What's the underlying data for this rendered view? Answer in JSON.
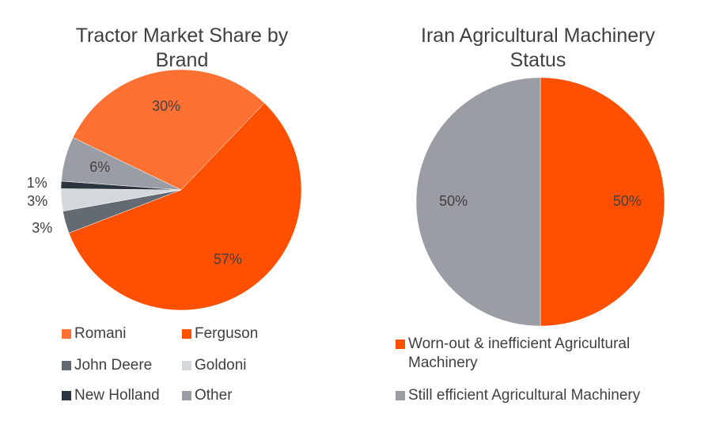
{
  "chart_data": [
    {
      "type": "pie",
      "title": "Tractor Market Share by Brand",
      "categories": [
        "Romani",
        "Ferguson",
        "John Deere",
        "Goldoni",
        "New Holland",
        "Other"
      ],
      "values": [
        30,
        57,
        3,
        3,
        1,
        6
      ],
      "value_labels": [
        "30%",
        "57%",
        "3%",
        "3%",
        "1%",
        "6%"
      ],
      "colors": [
        "#ff7033",
        "#ff4f00",
        "#636a72",
        "#d5d8db",
        "#2a3540",
        "#9a9ea4"
      ]
    },
    {
      "type": "pie",
      "title": "Iran Agricultural Machinery Status",
      "categories": [
        "Worn-out & inefficient Agricultural Machinery",
        "Still efficient Agricultural Machinery"
      ],
      "values": [
        50,
        50
      ],
      "value_labels": [
        "50%",
        "50%"
      ],
      "colors": [
        "#ff4f00",
        "#9a9ea4"
      ]
    }
  ]
}
